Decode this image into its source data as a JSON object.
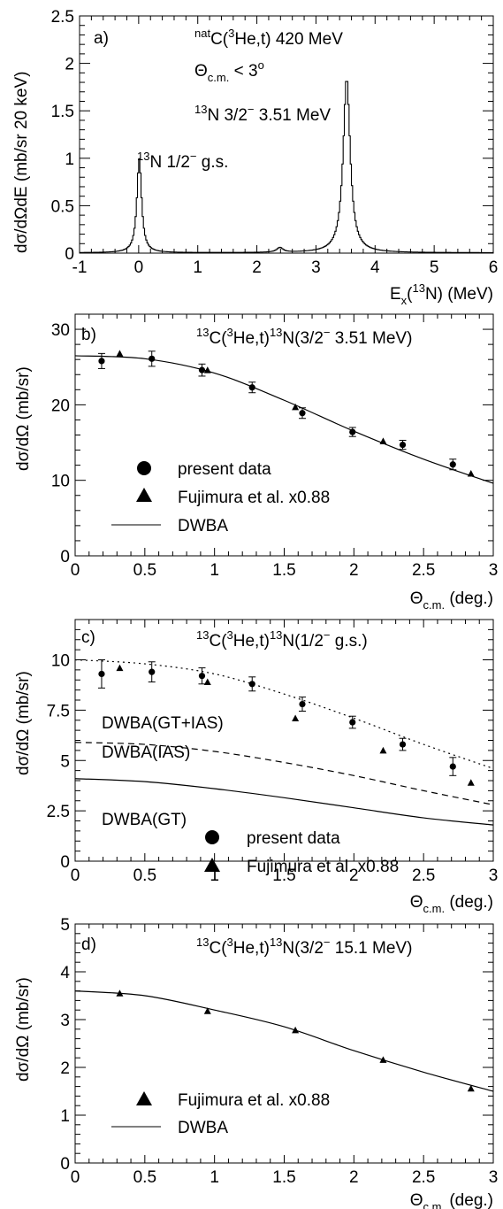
{
  "chart_data": [
    {
      "panel": "a",
      "type": "line",
      "panel_label": "a)",
      "xlabel": "E_x(13N) (MeV)",
      "ylabel": "dσ/dΩdE (mb/sr 20 keV)",
      "xlim": [
        -1,
        6
      ],
      "ylim": [
        0,
        2.5
      ],
      "xticks": [
        "-1",
        "0",
        "1",
        "2",
        "3",
        "4",
        "5",
        "6"
      ],
      "yticks": [
        "0",
        "0.5",
        "1",
        "1.5",
        "2",
        "2.5"
      ],
      "annotations": {
        "reaction": "natC(3He,t) 420 MeV",
        "angle": "Θc.m. < 3°",
        "peak_excited": "13N 3/2⁻ 3.51 MeV",
        "peak_gs": "13N 1/2⁻ g.s."
      },
      "series": [
        {
          "peaks": [
            {
              "center": 0.0,
              "height": 0.99,
              "width": 0.06
            },
            {
              "center": 2.38,
              "height": 0.05,
              "width": 0.08
            },
            {
              "center": 3.51,
              "height": 1.84,
              "width": 0.09
            }
          ]
        }
      ]
    },
    {
      "panel": "b",
      "type": "scatter",
      "panel_label": "b)",
      "xlabel": "Θc.m. (deg.)",
      "ylabel": "dσ/dΩ (mb/sr)",
      "xlim": [
        0,
        3
      ],
      "ylim": [
        0,
        32
      ],
      "xticks": [
        "0",
        "0.5",
        "1",
        "1.5",
        "2",
        "2.5",
        "3"
      ],
      "yticks": [
        "0",
        "10",
        "20",
        "30"
      ],
      "annotation": "13C(3He,t)13N(3/2⁻ 3.51 MeV)",
      "legend": [
        "present data",
        "Fujimura et al. x0.88",
        "DWBA"
      ],
      "series": [
        {
          "marker": "circle",
          "x": [
            0.19,
            0.55,
            0.91,
            1.27,
            1.63,
            1.99,
            2.35,
            2.71
          ],
          "y": [
            25.8,
            26.1,
            24.6,
            22.3,
            18.9,
            16.4,
            14.7,
            12.1
          ],
          "err": [
            1.0,
            1.0,
            0.8,
            0.7,
            0.7,
            0.6,
            0.6,
            0.7
          ]
        },
        {
          "marker": "triangle",
          "x": [
            0.32,
            0.95,
            1.58,
            2.21,
            2.84
          ],
          "y": [
            26.8,
            24.6,
            19.7,
            15.2,
            10.9
          ]
        },
        {
          "line": "solid",
          "x": [
            0.0,
            0.5,
            1.0,
            1.5,
            2.0,
            2.5,
            3.0
          ],
          "y": [
            26.5,
            26.1,
            24.2,
            20.6,
            16.5,
            12.8,
            9.6
          ]
        }
      ]
    },
    {
      "panel": "c",
      "type": "scatter",
      "panel_label": "c)",
      "xlabel": "Θc.m. (deg.)",
      "ylabel": "dσ/dΩ (mb/sr)",
      "xlim": [
        0,
        3
      ],
      "ylim": [
        0,
        12
      ],
      "xticks": [
        "0",
        "0.5",
        "1",
        "1.5",
        "2",
        "2.5",
        "3"
      ],
      "yticks": [
        "0",
        "2.5",
        "5",
        "7.5",
        "10"
      ],
      "annotation": "13C(3He,t)13N(1/2⁻ g.s.)",
      "curve_labels": [
        "DWBA(GT+IAS)",
        "DWBA(IAS)",
        "DWBA(GT)"
      ],
      "legend": [
        "present data",
        "Fujimura et al. x0.88"
      ],
      "series": [
        {
          "marker": "circle",
          "x": [
            0.19,
            0.55,
            0.91,
            1.27,
            1.63,
            1.99,
            2.35,
            2.71
          ],
          "y": [
            9.3,
            9.4,
            9.2,
            8.8,
            7.8,
            6.9,
            5.8,
            4.7
          ],
          "err": [
            0.7,
            0.5,
            0.4,
            0.35,
            0.35,
            0.3,
            0.3,
            0.45
          ]
        },
        {
          "marker": "triangle",
          "x": [
            0.32,
            0.95,
            1.58,
            2.21,
            2.84
          ],
          "y": [
            9.6,
            8.9,
            7.1,
            5.5,
            3.9
          ]
        },
        {
          "line": "dotted",
          "x": [
            0.0,
            0.5,
            1.0,
            1.5,
            2.0,
            2.5,
            3.0
          ],
          "y": [
            10.0,
            9.8,
            9.3,
            8.3,
            7.1,
            5.8,
            4.6
          ]
        },
        {
          "line": "dashed",
          "x": [
            0.0,
            0.5,
            1.0,
            1.5,
            2.0,
            2.5,
            3.0
          ],
          "y": [
            5.9,
            5.8,
            5.45,
            4.9,
            4.25,
            3.5,
            2.8
          ]
        },
        {
          "line": "solid",
          "x": [
            0.0,
            0.5,
            1.0,
            1.5,
            2.0,
            2.5,
            3.0
          ],
          "y": [
            4.1,
            3.95,
            3.6,
            3.15,
            2.65,
            2.15,
            1.8
          ]
        }
      ]
    },
    {
      "panel": "d",
      "type": "scatter",
      "panel_label": "d)",
      "xlabel": "Θc.m. (deg.)",
      "ylabel": "dσ/dΩ (mb/sr)",
      "xlim": [
        0,
        3
      ],
      "ylim": [
        0,
        5
      ],
      "xticks": [
        "0",
        "0.5",
        "1",
        "1.5",
        "2",
        "2.5",
        "3"
      ],
      "yticks": [
        "0",
        "1",
        "2",
        "3",
        "4",
        "5"
      ],
      "annotation": "13C(3He,t)13N(3/2⁻ 15.1 MeV)",
      "legend": [
        "Fujimura et al. x0.88",
        "DWBA"
      ],
      "series": [
        {
          "marker": "triangle",
          "x": [
            0.32,
            0.95,
            1.58,
            2.21,
            2.84
          ],
          "y": [
            3.55,
            3.18,
            2.78,
            2.16,
            1.56
          ]
        },
        {
          "line": "solid",
          "x": [
            0.0,
            0.5,
            1.0,
            1.5,
            2.0,
            2.5,
            3.0
          ],
          "y": [
            3.6,
            3.5,
            3.2,
            2.85,
            2.35,
            1.9,
            1.5
          ]
        }
      ]
    }
  ]
}
